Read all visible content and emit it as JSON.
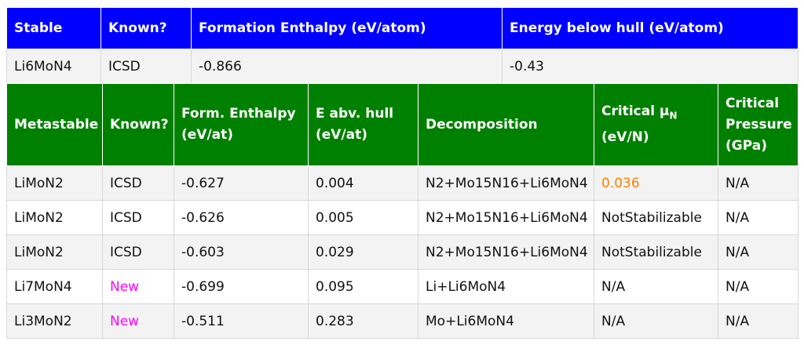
{
  "colors": {
    "stable_header_bg": "#0000ff",
    "metastable_header_bg": "#008000",
    "new_text": "#ff00ff",
    "highlight_value": "#ff8000",
    "row_alt_bg": "#f3f3f3"
  },
  "stable": {
    "headers": [
      "Stable",
      "Known?",
      "Formation Enthalpy (eV/atom)",
      "Energy below hull (eV/atom)"
    ],
    "row": [
      "Li6MoN4",
      "ICSD",
      "-0.866",
      "-0.43"
    ]
  },
  "metastable": {
    "headers": {
      "metastable": "Metastable",
      "known": "Known?",
      "form_enthalpy_1": "Form. Enthalpy",
      "form_enthalpy_2": "(eV/at)",
      "e_abv_hull_1": "E abv. hull",
      "e_abv_hull_2": "(eV/at)",
      "decomposition": "Decomposition",
      "critical_mu_1": "Critical μ",
      "critical_mu_sub": "N",
      "critical_mu_2": "(eV/N)",
      "critical_pressure_1": "Critical",
      "critical_pressure_2": "Pressure",
      "critical_pressure_3": "(GPa)"
    },
    "rows": [
      [
        "LiMoN2",
        "ICSD",
        "-0.627",
        "0.004",
        "N2+Mo15N16+Li6MoN4",
        "0.036",
        "N/A"
      ],
      [
        "LiMoN2",
        "ICSD",
        "-0.626",
        "0.005",
        "N2+Mo15N16+Li6MoN4",
        "NotStabilizable",
        "N/A"
      ],
      [
        "LiMoN2",
        "ICSD",
        "-0.603",
        "0.029",
        "N2+Mo15N16+Li6MoN4",
        "NotStabilizable",
        "N/A"
      ],
      [
        "Li7MoN4",
        "New",
        "-0.699",
        "0.095",
        "Li+Li6MoN4",
        "N/A",
        "N/A"
      ],
      [
        "Li3MoN2",
        "New",
        "-0.511",
        "0.283",
        "Mo+Li6MoN4",
        "N/A",
        "N/A"
      ]
    ]
  }
}
